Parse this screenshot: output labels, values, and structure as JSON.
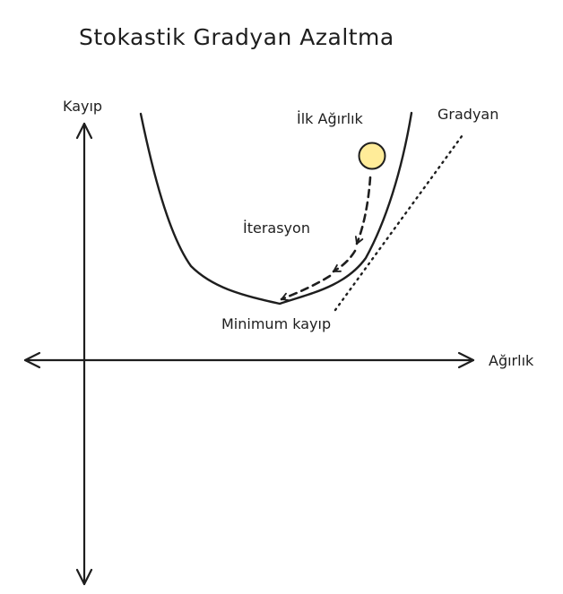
{
  "title": "Stokastik Gradyan Azaltma",
  "axes": {
    "y_label": "Kayıp",
    "x_label": "Ağırlık"
  },
  "labels": {
    "initial_weight": "İlk Ağırlık",
    "gradient": "Gradyan",
    "iteration": "İterasyon",
    "minimum_loss": "Minimum kayıp"
  },
  "colors": {
    "ink": "#1e1e1e",
    "ball_fill": "#ffec99",
    "ball_stroke": "#1e1e1e"
  },
  "icons": {
    "arrowhead": "arrowhead-icon"
  }
}
